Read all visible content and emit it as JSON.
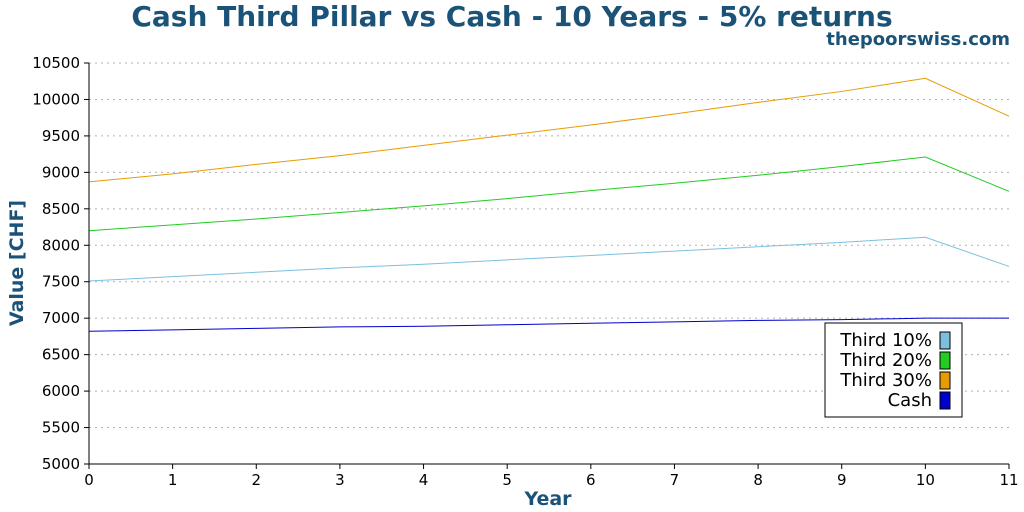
{
  "header": {
    "title": "Cash Third Pillar vs Cash - 10 Years - 5% returns",
    "site": "thepoorswiss.com"
  },
  "chart_data": {
    "type": "line",
    "title": "Cash Third Pillar vs Cash - 10 Years - 5% returns",
    "xlabel": "Year",
    "ylabel": "Value [CHF]",
    "xlim": [
      0,
      11
    ],
    "ylim": [
      5000,
      10500
    ],
    "xticks": [
      0,
      1,
      2,
      3,
      4,
      5,
      6,
      7,
      8,
      9,
      10,
      11
    ],
    "yticks": [
      5000,
      5500,
      6000,
      6500,
      7000,
      7500,
      8000,
      8500,
      9000,
      9500,
      10000,
      10500
    ],
    "grid": "horizontal-dotted",
    "legend_position": "lower-right",
    "x": [
      0,
      1,
      2,
      3,
      4,
      5,
      6,
      7,
      8,
      9,
      10,
      11
    ],
    "series": [
      {
        "name": "Third 10%",
        "color": "#7ec0dc",
        "values": [
          7510,
          7570,
          7630,
          7690,
          7740,
          7800,
          7860,
          7920,
          7980,
          8040,
          8110,
          7710
        ]
      },
      {
        "name": "Third 20%",
        "color": "#22cc22",
        "values": [
          8200,
          8280,
          8360,
          8450,
          8540,
          8640,
          8750,
          8850,
          8960,
          9080,
          9210,
          8740
        ]
      },
      {
        "name": "Third 30%",
        "color": "#e69c00",
        "values": [
          8870,
          8980,
          9110,
          9230,
          9370,
          9510,
          9650,
          9800,
          9960,
          10110,
          10290,
          9770
        ]
      },
      {
        "name": "Cash",
        "color": "#0000cc",
        "values": [
          6820,
          6840,
          6860,
          6880,
          6890,
          6910,
          6930,
          6950,
          6970,
          6980,
          7000,
          7000
        ]
      }
    ]
  }
}
